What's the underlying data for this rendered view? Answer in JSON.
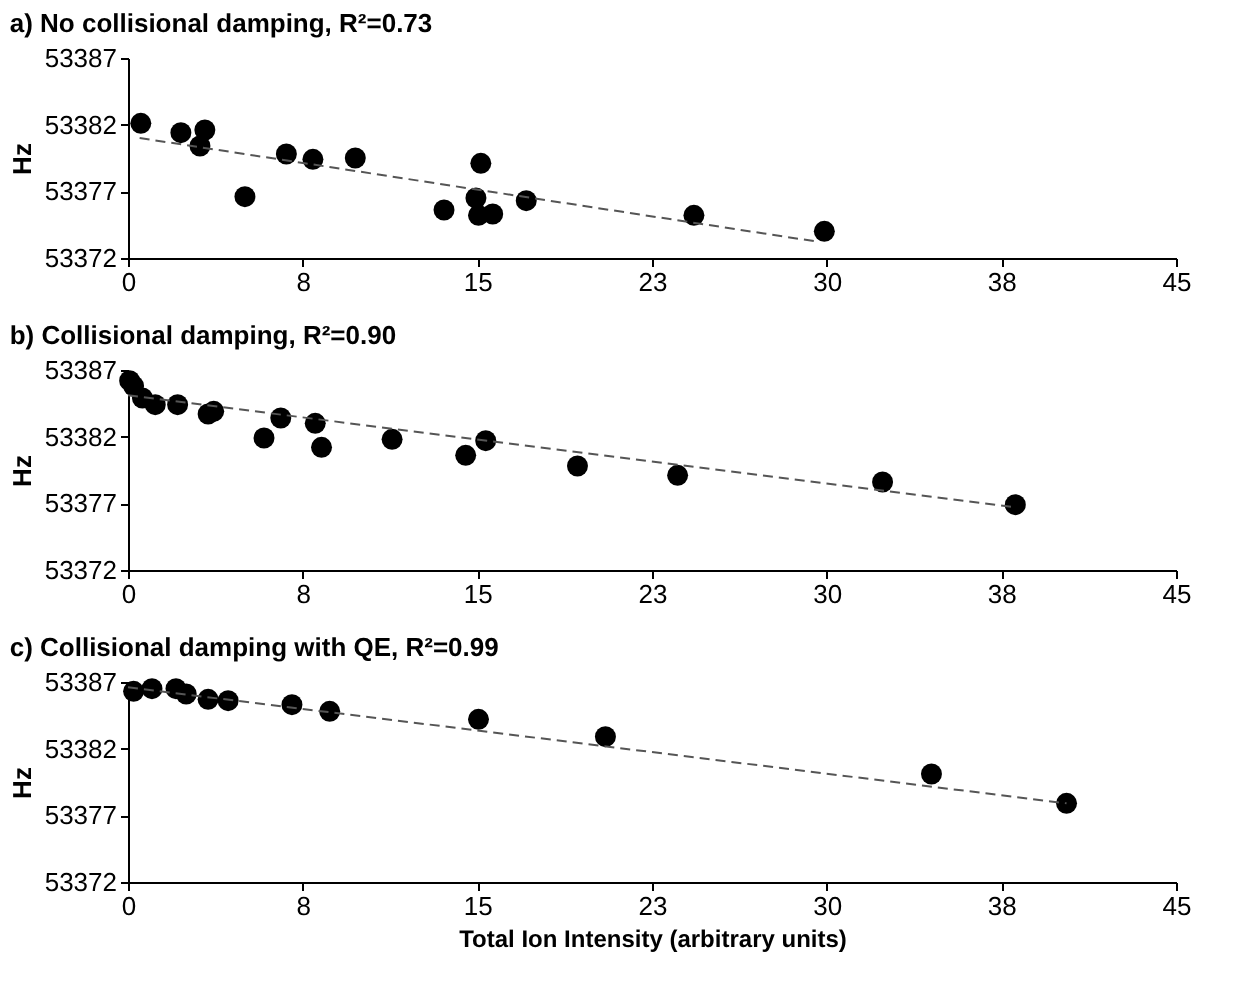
{
  "chart_data": [
    {
      "type": "scatter",
      "title": "a) No collisional damping, R²=0.73",
      "ylabel": "Hz",
      "xlim": [
        0,
        45
      ],
      "xticks": [
        0,
        {
          "value": 7.5,
          "label": "8"
        },
        15,
        {
          "value": 22.5,
          "label": "23"
        },
        30,
        {
          "value": 37.5,
          "label": "38"
        },
        45
      ],
      "ylim": [
        53372,
        53387
      ],
      "yticks": [
        53372,
        53377,
        53382,
        53387
      ],
      "marker": "circle",
      "grid": false,
      "series": [
        {
          "color": "#000000",
          "x": [
            0.55,
            2.27,
            3.3,
            3.09,
            5.02,
            6.8,
            7.94,
            9.76,
            13.57,
            15.15,
            14.94,
            15.05,
            15.66,
            17.1,
            24.3,
            29.9
          ],
          "values": [
            53382.1,
            53381.4,
            53381.6,
            53380.4,
            53376.6,
            53379.8,
            53379.4,
            53379.5,
            53375.6,
            53379.1,
            53376.5,
            53375.2,
            53375.3,
            53376.3,
            53375.2,
            53374.0
          ]
        },
        {
          "type": "line",
          "color": "#555555",
          "line_style": "dashed",
          "marker": "none",
          "x": [
            0.5,
            29.7
          ],
          "values": [
            53381.0,
            53373.2
          ]
        }
      ]
    },
    {
      "type": "scatter",
      "title": "b) Collisional damping, R²=0.90",
      "ylabel": "Hz",
      "xlim": [
        0,
        45
      ],
      "xticks": [
        0,
        {
          "value": 7.5,
          "label": "8"
        },
        15,
        {
          "value": 22.5,
          "label": "23"
        },
        30,
        {
          "value": 37.5,
          "label": "38"
        },
        45
      ],
      "ylim": [
        53372,
        53387
      ],
      "yticks": [
        53372,
        53377,
        53382,
        53387
      ],
      "marker": "circle",
      "grid": false,
      "series": [
        {
          "color": "#000000",
          "x": [
            0.07,
            0.24,
            0.62,
            1.17,
            2.13,
            3.44,
            3.68,
            5.84,
            6.56,
            8.04,
            8.31,
            11.34,
            14.5,
            15.36,
            19.3,
            23.6,
            32.4,
            38.1
          ],
          "values": [
            53386.2,
            53385.8,
            53384.9,
            53384.4,
            53384.4,
            53383.7,
            53383.9,
            53381.9,
            53383.4,
            53383.0,
            53381.2,
            53381.8,
            53380.6,
            53381.7,
            53379.8,
            53379.1,
            53378.6,
            53376.9
          ]
        },
        {
          "type": "line",
          "color": "#555555",
          "line_style": "dashed",
          "marker": "none",
          "x": [
            0,
            38.1
          ],
          "values": [
            53385.1,
            53376.7
          ]
        }
      ]
    },
    {
      "type": "scatter",
      "title": "c) Collisional damping with QE, R²=0.99",
      "ylabel": "Hz",
      "xlabel": "Total Ion Intensity  (arbitrary units)",
      "xlim": [
        0,
        45
      ],
      "xticks": [
        0,
        {
          "value": 7.5,
          "label": "8"
        },
        15,
        {
          "value": 22.5,
          "label": "23"
        },
        30,
        {
          "value": 37.5,
          "label": "38"
        },
        45
      ],
      "ylim": [
        53372,
        53387
      ],
      "yticks": [
        53372,
        53377,
        53382,
        53387
      ],
      "marker": "circle",
      "grid": false,
      "series": [
        {
          "color": "#000000",
          "x": [
            0.24,
            1.03,
            2.06,
            2.5,
            3.44,
            4.3,
            7.04,
            8.66,
            15.05,
            20.5,
            34.5,
            40.3
          ],
          "values": [
            53386.3,
            53386.5,
            53386.5,
            53386.1,
            53385.7,
            53385.6,
            53385.3,
            53384.8,
            53384.2,
            53382.9,
            53380.1,
            53377.9
          ]
        },
        {
          "type": "line",
          "color": "#555555",
          "line_style": "dashed",
          "marker": "none",
          "x": [
            0,
            40.3
          ],
          "values": [
            53386.6,
            53377.9
          ]
        }
      ]
    }
  ]
}
